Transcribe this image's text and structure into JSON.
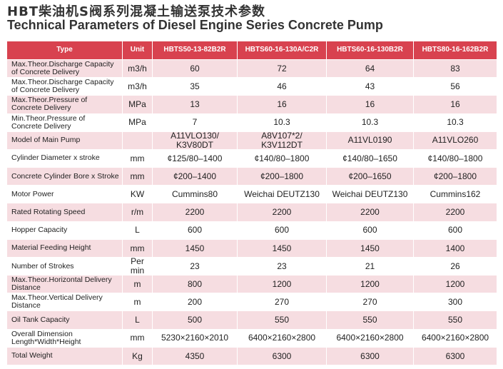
{
  "header": {
    "title": "HBT柴油机S阀系列混凝土输送泵技术参数",
    "subtitle": "Technical Parameters of Diesel  Engine Series Concrete Pump"
  },
  "table": {
    "columns": [
      "Type",
      "Unit",
      "HBTS50-13-82B2R",
      "HBTS60-16-130A/C2R",
      "HBTS60-16-130B2R",
      "HBTS80-16-162B2R"
    ],
    "rows": [
      [
        "Max.Theor.Discharge Capacity\nof Concrete Delivery",
        "m3/h",
        60,
        72,
        64,
        83
      ],
      [
        "Max.Theor.Discharge Capacity\nof Concrete Delivery",
        "m3/h",
        35,
        46,
        43,
        56
      ],
      [
        "Max.Theor.Pressure of\nConcrete Delivery",
        "MPa",
        13,
        16,
        16,
        16
      ],
      [
        "Min.Theor.Pressure of\nConcrete Delivery",
        "MPa",
        7,
        10.3,
        10.3,
        10.3
      ],
      [
        "Model of Main Pump",
        null,
        "A11VLO130/\nK3V80DT",
        "A8V107*2/\nK3V112DT",
        "A11VL0190",
        "A11VLO260"
      ],
      [
        "Cylinder Diameter x stroke",
        "mm",
        "¢125/80–1400",
        "¢140/80–1800",
        "¢140/80–1650",
        "¢140/80–1800"
      ],
      [
        "Concrete Cylinder Bore x Stroke",
        "mm",
        "¢200–1400",
        "¢200–1800",
        "¢200–1650",
        "¢200–1800"
      ],
      [
        "Motor Power",
        "KW",
        "Cummins80",
        "Weichai DEUTZ130",
        "Weichai DEUTZ130",
        "Cummins162"
      ],
      [
        "Rated Rotating Speed",
        "r/m",
        2200,
        2200,
        2200,
        2200
      ],
      [
        "Hopper Capacity",
        "L",
        600,
        600,
        600,
        600
      ],
      [
        "Material Feeding Height",
        "mm",
        1450,
        1450,
        1450,
        1400
      ],
      [
        "Number of Strokes",
        "Per min",
        23,
        23,
        21,
        26
      ],
      [
        "Max.Theor.Horizontal Delivery\nDistance",
        "m",
        800,
        1200,
        1200,
        1200
      ],
      [
        "Max.Theor.Vertical Delivery\nDistance",
        "m",
        200,
        270,
        270,
        300
      ],
      [
        "Oil Tank Capacity",
        "L",
        500,
        550,
        550,
        550
      ],
      [
        "Overall Dimension\nLength*Width*Height",
        "mm",
        "5230×2160×2010",
        "6400×2160×2800",
        "6400×2160×2800",
        "6400×2160×2800"
      ],
      [
        "Total Weight",
        "Kg",
        4350,
        6300,
        6300,
        6300
      ]
    ]
  }
}
